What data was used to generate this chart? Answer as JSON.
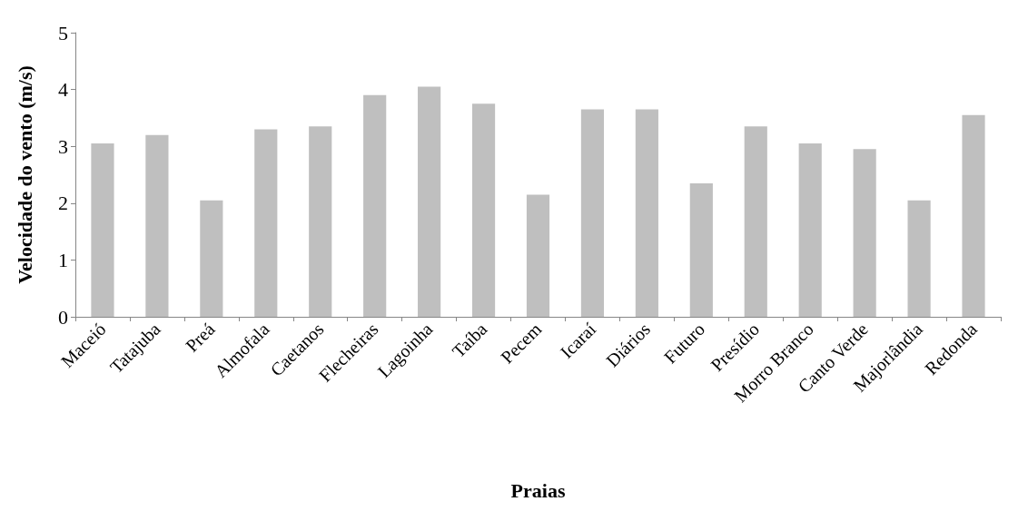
{
  "chart_data": {
    "type": "bar",
    "xlabel": "Praias",
    "ylabel": "Velocidade do vento (m/s)",
    "categories": [
      "Maceió",
      "Tatajuba",
      "Preá",
      "Almofala",
      "Caetanos",
      "Flecheiras",
      "Lagoinha",
      "Taíba",
      "Pecem",
      "Icaraí",
      "Diários",
      "Futuro",
      "Presídio",
      "Morro Branco",
      "Canto Verde",
      "Majorlândia",
      "Redonda"
    ],
    "values": [
      3.05,
      3.2,
      2.05,
      3.3,
      3.35,
      3.9,
      4.05,
      3.75,
      2.15,
      3.65,
      3.65,
      2.35,
      3.35,
      3.05,
      2.95,
      2.05,
      3.55
    ],
    "color": "#bfbfbf",
    "ylim": [
      0,
      5
    ],
    "yticks": [
      0,
      1,
      2,
      3,
      4,
      5
    ],
    "grid": false
  }
}
